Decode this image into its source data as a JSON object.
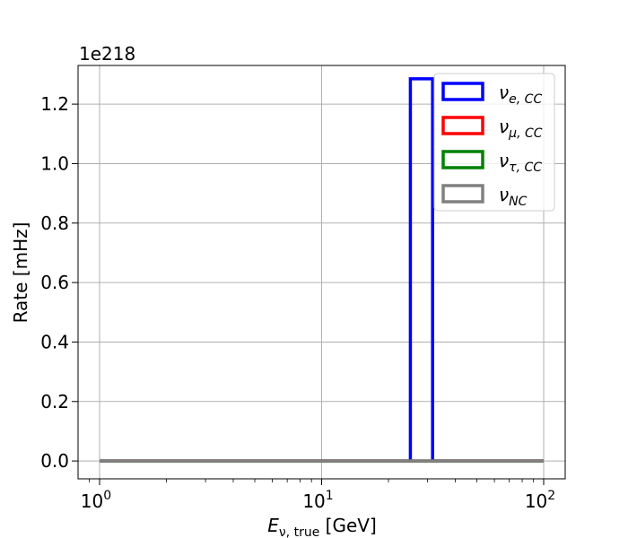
{
  "chart_data": {
    "type": "step-histogram",
    "xscale": "log",
    "xlim": [
      0.8,
      125
    ],
    "ylim": [
      -0.06,
      1.33
    ],
    "x_ticks": [
      {
        "value": 1,
        "base": "10",
        "exp": "0"
      },
      {
        "value": 10,
        "base": "10",
        "exp": "1"
      },
      {
        "value": 100,
        "base": "10",
        "exp": "2"
      }
    ],
    "y_ticks": [
      {
        "value": 0.0,
        "label": "0.0"
      },
      {
        "value": 0.2,
        "label": "0.2"
      },
      {
        "value": 0.4,
        "label": "0.4"
      },
      {
        "value": 0.6,
        "label": "0.6"
      },
      {
        "value": 0.8,
        "label": "0.8"
      },
      {
        "value": 1.0,
        "label": "1.0"
      },
      {
        "value": 1.2,
        "label": "1.2"
      }
    ],
    "y_offset_label": "1e218",
    "xlabel": {
      "main": "E",
      "sub": "ν, true",
      "unit": " [GeV]"
    },
    "ylabel": "Rate [mHz]",
    "grid": true,
    "legend_position": "upper-right",
    "series": [
      {
        "name": "ν",
        "subscript": "e, CC",
        "color": "#0000ff",
        "bins": [
          {
            "x0": 1,
            "x1": 25.1,
            "y": 0
          },
          {
            "x0": 25.1,
            "x1": 31.6,
            "y": 1.285
          },
          {
            "x0": 31.6,
            "x1": 100,
            "y": 0
          }
        ]
      },
      {
        "name": "ν",
        "subscript": "μ, CC",
        "color": "#ff0000",
        "bins": [
          {
            "x0": 1,
            "x1": 100,
            "y": 0
          }
        ]
      },
      {
        "name": "ν",
        "subscript": "τ, CC",
        "color": "#008000",
        "bins": [
          {
            "x0": 1,
            "x1": 100,
            "y": 0
          }
        ]
      },
      {
        "name": "ν",
        "subscript": "NC",
        "color": "#808080",
        "bins": [
          {
            "x0": 1,
            "x1": 100,
            "y": 0
          }
        ]
      }
    ]
  }
}
